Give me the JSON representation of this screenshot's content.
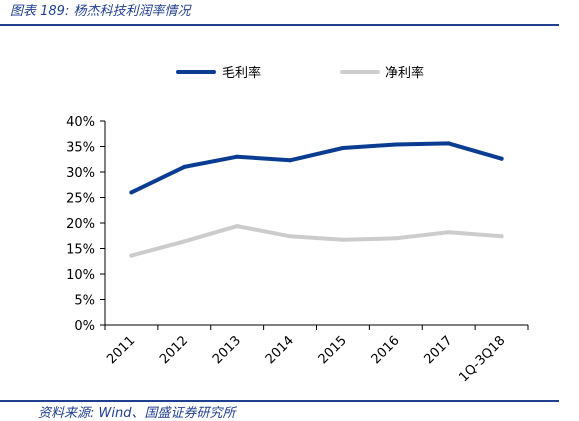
{
  "caption": "图表 189: 杨杰科技利润率情况",
  "source": "资料来源: Wind、国盛证券研究所",
  "colors": {
    "gross": "#0a3d91",
    "net": "#cccccc",
    "accent": "#1f3f8f"
  },
  "chart_data": {
    "type": "line",
    "categories": [
      "2011",
      "2012",
      "2013",
      "2014",
      "2015",
      "2016",
      "2017",
      "1Q-3Q18"
    ],
    "ylim": [
      0,
      40
    ],
    "yticks": [
      "0%",
      "5%",
      "10%",
      "15%",
      "20%",
      "25%",
      "30%",
      "35%",
      "40%"
    ],
    "legend_position": "top",
    "grid": false,
    "series": [
      {
        "name": "毛利率",
        "values": [
          26.0,
          31.0,
          33.0,
          32.3,
          34.7,
          35.4,
          35.6,
          32.6
        ]
      },
      {
        "name": "净利率",
        "values": [
          13.6,
          16.4,
          19.4,
          17.4,
          16.7,
          17.0,
          18.2,
          17.4
        ]
      }
    ]
  }
}
